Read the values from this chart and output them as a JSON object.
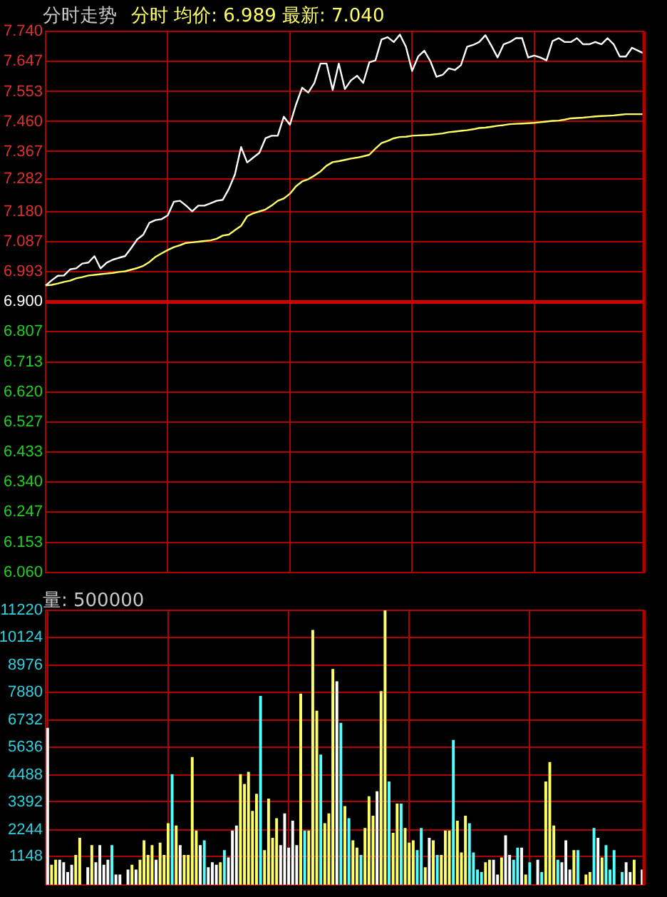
{
  "chart_data": [
    {
      "type": "line",
      "title": "分时走势",
      "subtitle": "分时 均价: 6.989 最新: 7.040",
      "categories": [
        null,
        null,
        null,
        null,
        null,
        null,
        null,
        null,
        null,
        null,
        null,
        null,
        null,
        null,
        null,
        null,
        null,
        null,
        null,
        null,
        null,
        null,
        null,
        null,
        null,
        null,
        null,
        null,
        null,
        null,
        null,
        null,
        null,
        null,
        null,
        null,
        null,
        null,
        null,
        null,
        null,
        null,
        null,
        null,
        null,
        null,
        null,
        null,
        null,
        null,
        null,
        null,
        null,
        null,
        null,
        null,
        null,
        null,
        null,
        null,
        null,
        null,
        null,
        null,
        null,
        null,
        null,
        null,
        null,
        null,
        null,
        null,
        null,
        null,
        null,
        null,
        null,
        null,
        null,
        null,
        null,
        null,
        null,
        null,
        null,
        null,
        null,
        null,
        null,
        null,
        null,
        null,
        null,
        null,
        null,
        null,
        null,
        null,
        null
      ],
      "ylim": [
        6.06,
        7.74
      ],
      "yticks": [
        {
          "value": 6.06,
          "label": "6.060"
        },
        6.153,
        6.247,
        {
          "value": 6.34,
          "label": "6.340"
        },
        6.433,
        6.527,
        {
          "value": 6.62,
          "label": "6.620"
        },
        6.713,
        6.807,
        {
          "value": 6.9,
          "label": "6.900"
        },
        6.993,
        7.087,
        {
          "value": 7.18,
          "label": "7.180"
        },
        7.282,
        7.367,
        {
          "value": 7.46,
          "label": "7.460"
        },
        7.553,
        7.647,
        {
          "value": 7.74,
          "label": "7.740"
        }
      ],
      "grid": true,
      "tick_labels": "y",
      "marker": "none",
      "ref_lines": [
        {
          "axis": "y",
          "value": 6.9,
          "color": "#d00000"
        }
      ],
      "series": [
        {
          "color": "#ffffff",
          "values": [
            6.951,
            6.967,
            6.981,
            6.982,
            7.001,
            7.004,
            7.019,
            7.022,
            7.042,
            7.004,
            7.022,
            7.031,
            7.037,
            7.042,
            7.067,
            7.094,
            7.109,
            7.146,
            7.154,
            7.157,
            7.169,
            7.211,
            7.214,
            7.199,
            7.181,
            7.199,
            7.199,
            7.206,
            7.214,
            7.217,
            7.251,
            7.296,
            7.381,
            7.333,
            7.348,
            7.363,
            7.408,
            7.416,
            7.416,
            7.475,
            7.45,
            7.513,
            7.565,
            7.55,
            7.58,
            7.64,
            7.64,
            7.558,
            7.64,
            7.561,
            7.588,
            7.602,
            7.58,
            7.644,
            7.65,
            7.715,
            7.722,
            7.707,
            7.73,
            7.692,
            7.617,
            7.662,
            7.68,
            7.647,
            7.599,
            7.605,
            7.625,
            7.62,
            7.635,
            7.692,
            7.698,
            7.707,
            7.728,
            7.695,
            7.659,
            7.7,
            7.707,
            7.719,
            7.719,
            7.659,
            7.665,
            7.659,
            7.65,
            7.71,
            7.719,
            7.707,
            7.707,
            7.719,
            7.7,
            7.7,
            7.707,
            7.7,
            7.719,
            7.7,
            7.662,
            7.662,
            7.689,
            7.68,
            7.671
          ]
        },
        {
          "color": "#ffff66",
          "values": [
            6.951,
            6.953,
            6.957,
            6.962,
            6.966,
            6.973,
            6.977,
            6.982,
            6.984,
            6.986,
            6.988,
            6.99,
            6.993,
            6.995,
            7.0,
            7.005,
            7.012,
            7.024,
            7.04,
            7.051,
            7.061,
            7.07,
            7.076,
            7.083,
            7.085,
            7.087,
            7.089,
            7.091,
            7.096,
            7.106,
            7.109,
            7.123,
            7.136,
            7.166,
            7.175,
            7.181,
            7.187,
            7.199,
            7.214,
            7.221,
            7.236,
            7.259,
            7.274,
            7.281,
            7.292,
            7.305,
            7.323,
            7.334,
            7.337,
            7.341,
            7.345,
            7.348,
            7.352,
            7.357,
            7.376,
            7.393,
            7.4,
            7.408,
            7.412,
            7.413,
            7.416,
            7.417,
            7.418,
            7.419,
            7.421,
            7.423,
            7.427,
            7.429,
            7.431,
            7.433,
            7.436,
            7.44,
            7.441,
            7.444,
            7.447,
            7.449,
            7.452,
            7.453,
            7.454,
            7.455,
            7.456,
            7.458,
            7.46,
            7.462,
            7.463,
            7.466,
            7.47,
            7.471,
            7.472,
            7.474,
            7.476,
            7.477,
            7.478,
            7.479,
            7.481,
            7.483,
            7.483,
            7.483,
            7.483
          ]
        }
      ]
    },
    {
      "type": "bar",
      "title": "量: 500000",
      "ylim": [
        0,
        11220
      ],
      "yticks": [
        1148,
        2244,
        3392,
        4488,
        5636,
        6732,
        7880,
        8976,
        10124,
        11220
      ],
      "grid": true,
      "tick_labels": "y",
      "categories": [
        null,
        null,
        null,
        null,
        null,
        null,
        null,
        null,
        null,
        null,
        null,
        null,
        null,
        null,
        null,
        null,
        null,
        null,
        null,
        null,
        null,
        null,
        null,
        null,
        null,
        null,
        null,
        null,
        null,
        null,
        null,
        null,
        null,
        null,
        null,
        null,
        null,
        null,
        null,
        null,
        null,
        null,
        null,
        null,
        null,
        null,
        null,
        null,
        null,
        null,
        null,
        null,
        null,
        null,
        null,
        null,
        null,
        null,
        null,
        null,
        null,
        null,
        null,
        null,
        null,
        null,
        null,
        null,
        null,
        null,
        null,
        null,
        null,
        null,
        null,
        null,
        null,
        null,
        null,
        null,
        null,
        null,
        null,
        null,
        null,
        null,
        null,
        null,
        null,
        null,
        null,
        null,
        null,
        null,
        null,
        null,
        null,
        null,
        null,
        null,
        null,
        null,
        null,
        null,
        null,
        null,
        null,
        null,
        null,
        null,
        null,
        null,
        null,
        null,
        null,
        null,
        null,
        null,
        null,
        null,
        null,
        null,
        null,
        null,
        null,
        null,
        null,
        null,
        null,
        null,
        null,
        null,
        null,
        null,
        null,
        null,
        null,
        null,
        null,
        null,
        null,
        null,
        null,
        null,
        null,
        null,
        null,
        null,
        null
      ],
      "values": [
        6400,
        800,
        1000,
        1000,
        900,
        500,
        800,
        1200,
        1900,
        null,
        700,
        1600,
        900,
        1600,
        800,
        1000,
        1600,
        400,
        400,
        null,
        600,
        800,
        600,
        1000,
        1800,
        1200,
        1600,
        1000,
        1700,
        1200,
        2500,
        4500,
        2400,
        1600,
        1200,
        1200,
        5200,
        2200,
        1600,
        1800,
        700,
        900,
        800,
        900,
        1400,
        1100,
        2200,
        2400,
        4500,
        4100,
        4600,
        3000,
        3700,
        7700,
        1400,
        3500,
        1900,
        2700,
        1600,
        2900,
        1500,
        2600,
        1600,
        7800,
        2200,
        2200,
        10400,
        7100,
        5300,
        2500,
        2900,
        8800,
        8300,
        6600,
        3200,
        2700,
        1800,
        1500,
        1200,
        2300,
        3600,
        2800,
        3800,
        7900,
        11200,
        4200,
        2100,
        3300,
        3300,
        2300,
        1700,
        1800,
        1400,
        2300,
        700,
        1900,
        1800,
        1200,
        1200,
        2200,
        2200,
        5900,
        2600,
        1300,
        2800,
        2500,
        1300,
        600,
        500,
        900,
        1000,
        1000,
        400,
        1100,
        2000,
        1200,
        1000,
        1500,
        1500,
        400,
        900,
        null,
        1000,
        500,
        4200,
        5000,
        2400,
        1000,
        900,
        1800,
        600,
        1400,
        1400,
        null,
        400,
        500,
        2300,
        1900,
        1100,
        1600,
        600,
        1400,
        null,
        500,
        900,
        500,
        1000,
        null,
        600
      ],
      "colors": [
        "#ffffff",
        "#ffff66",
        "#ffff66",
        "#ffffff",
        "#ffffff",
        "#ffffff",
        "#ffffff",
        "#ffff66",
        "#ffff66",
        "#ffffff",
        "#ffffff",
        "#ffff66",
        "#ffffff",
        "#ffffff",
        "#ffffff",
        "#ffffff",
        "#54ffff",
        "#ffffff",
        "#ffffff",
        "#ffffff",
        "#ffffff",
        "#ffff66",
        "#ffffff",
        "#ffff66",
        "#ffff66",
        "#ffff66",
        "#ffff66",
        "#ffffff",
        "#ffff66",
        "#ffff66",
        "#ffff66",
        "#54ffff",
        "#ffff66",
        "#ffffff",
        "#ffff66",
        "#ffff66",
        "#ffff66",
        "#ffff66",
        "#ffffff",
        "#54ffff",
        "#ffffff",
        "#ffffff",
        "#ffffff",
        "#ffff66",
        "#54ffff",
        "#ffffff",
        "#ffffff",
        "#ffffff",
        "#ffff66",
        "#ffff66",
        "#ffff66",
        "#ffff66",
        "#ffff66",
        "#54ffff",
        "#ffff66",
        "#ffff66",
        "#ffff66",
        "#ffff66",
        "#ffffff",
        "#ffffff",
        "#ffffff",
        "#ffffff",
        "#ffffff",
        "#ffff66",
        "#54ffff",
        "#ffff66",
        "#ffff66",
        "#ffff66",
        "#54ffff",
        "#ffff66",
        "#ffff66",
        "#ffff66",
        "#ffffff",
        "#54ffff",
        "#ffff66",
        "#54ffff",
        "#ffff66",
        "#ffff66",
        "#54ffff",
        "#ffff66",
        "#ffff66",
        "#ffff66",
        "#ffffff",
        "#ffff66",
        "#ffff66",
        "#54ffff",
        "#ffff66",
        "#ffff66",
        "#54ffff",
        "#ffff66",
        "#ffff66",
        "#ffff66",
        "#54ffff",
        "#54ffff",
        "#ffff66",
        "#ffffff",
        "#ffff66",
        "#54ffff",
        "#ffff66",
        "#ffff66",
        "#ffff66",
        "#54ffff",
        "#ffff66",
        "#ffff66",
        "#ffff66",
        "#54ffff",
        "#54ffff",
        "#54ffff",
        "#54ffff",
        "#ffff66",
        "#ffff66",
        "#ffffff",
        "#ffffff",
        "#ffff66",
        "#ffffff",
        "#ffffff",
        "#54ffff",
        "#54ffff",
        "#ffffff",
        "#ffff66",
        "#54ffff",
        "#ffffff",
        "#ffffff",
        "#54ffff",
        "#ffff66",
        "#ffff66",
        "#ffff66",
        "#54ffff",
        "#ffffff",
        "#ffffff",
        "#ffffff",
        "#ffff66",
        "#54ffff",
        "#ffffff",
        "#ffff66",
        "#ffff66",
        "#54ffff",
        "#ffffff",
        "#ffff66",
        "#54ffff",
        "#54ffff",
        "#54ffff",
        "#ffffff",
        "#54ffff",
        "#ffffff",
        "#ffffff",
        "#ffff66",
        "#ffffff",
        "#ffffff"
      ]
    }
  ]
}
